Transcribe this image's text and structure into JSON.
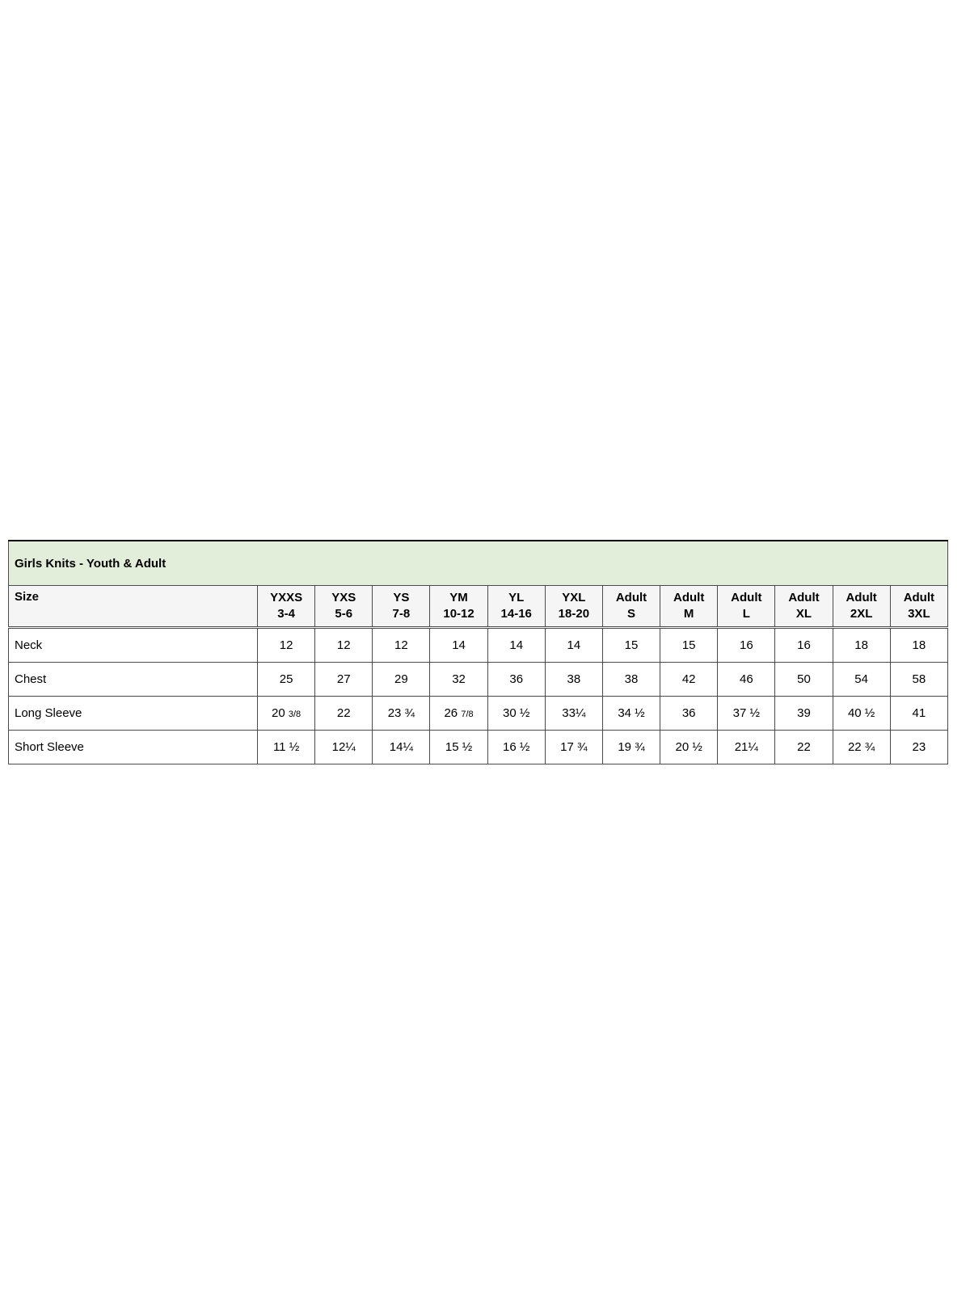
{
  "colors": {
    "title_bg": "#e3eeda",
    "header_bg": "#f5f5f5",
    "border": "#4a4a4a",
    "text": "#000000"
  },
  "chart_data": {
    "type": "table",
    "title": "Girls Knits - Youth & Adult",
    "corner_label": "Size",
    "columns": [
      {
        "line1": "YXXS",
        "line2": "3-4"
      },
      {
        "line1": "YXS",
        "line2": "5-6"
      },
      {
        "line1": "YS",
        "line2": "7-8"
      },
      {
        "line1": "YM",
        "line2": "10-12"
      },
      {
        "line1": "YL",
        "line2": "14-16"
      },
      {
        "line1": "YXL",
        "line2": "18-20"
      },
      {
        "line1": "Adult",
        "line2": "S"
      },
      {
        "line1": "Adult",
        "line2": "M"
      },
      {
        "line1": "Adult",
        "line2": "L"
      },
      {
        "line1": "Adult",
        "line2": "XL"
      },
      {
        "line1": "Adult",
        "line2": "2XL"
      },
      {
        "line1": "Adult",
        "line2": "3XL"
      }
    ],
    "rows": [
      {
        "label": "Neck",
        "values": [
          "12",
          "12",
          "12",
          "14",
          "14",
          "14",
          "15",
          "15",
          "16",
          "16",
          "18",
          "18"
        ]
      },
      {
        "label": "Chest",
        "values": [
          "25",
          "27",
          "29",
          "32",
          "36",
          "38",
          "38",
          "42",
          "46",
          "50",
          "54",
          "58"
        ]
      },
      {
        "label": "Long Sleeve",
        "values": [
          "20 3/8",
          "22",
          "23 ¾",
          "26 7/8",
          "30 ½",
          "33¼",
          "34 ½",
          "36",
          "37 ½",
          "39",
          "40 ½",
          "41"
        ]
      },
      {
        "label": "Short Sleeve",
        "values": [
          "11 ½",
          "12¼",
          "14¼",
          "15 ½",
          "16 ½",
          "17 ¾",
          "19 ¾",
          "20 ½",
          "21¼",
          "22",
          "22 ¾",
          "23"
        ]
      }
    ]
  }
}
